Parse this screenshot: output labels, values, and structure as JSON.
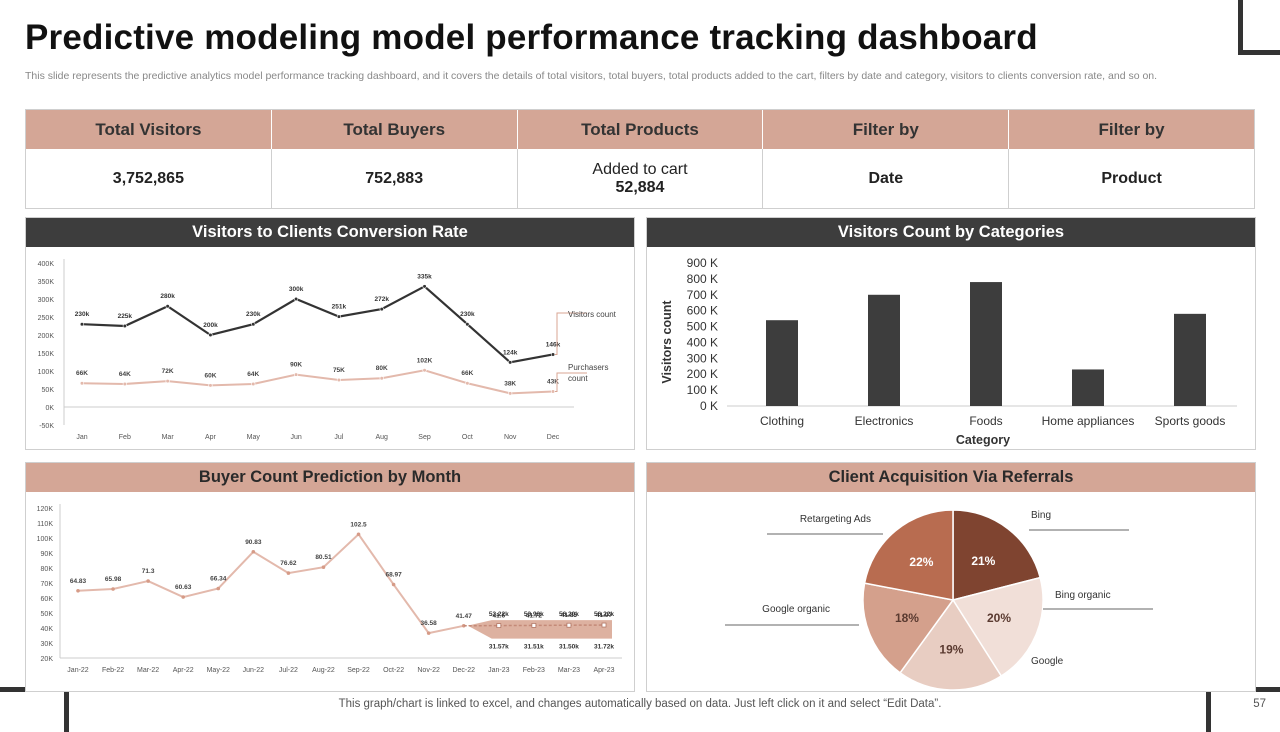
{
  "title": "Predictive modeling model performance tracking dashboard",
  "subtitle": "This slide represents the predictive analytics model performance tracking dashboard, and it covers the details of total visitors, total buyers, total products added to the cart, filters by date and category, visitors to clients conversion rate, and so on.",
  "kpis": {
    "headers": [
      "Total Visitors",
      "Total Buyers",
      "Total Products",
      "Filter by",
      "Filter by"
    ],
    "values": {
      "total_visitors": "3,752,865",
      "total_buyers": "752,883",
      "products_label": "Added to cart",
      "products_value": "52,884",
      "filter_date": "Date",
      "filter_product": "Product"
    }
  },
  "panels": {
    "conversion": "Visitors to Clients Conversion Rate",
    "categories": "Visitors Count by Categories",
    "buyer": "Buyer Count Prediction by Month",
    "referrals": "Client Acquisition Via Referrals"
  },
  "footer": "This graph/chart is linked to excel,  and changes automatically based on data. Just left click on it and select “Edit Data”.",
  "page_number": "57",
  "colors": {
    "tan": "#d4a696",
    "dark": "#3d3d3d",
    "line_dark": "#333333",
    "line_light": "#e3b9ac"
  },
  "chart_data": [
    {
      "id": "conversion",
      "type": "line",
      "title": "Visitors to Clients Conversion Rate",
      "categories": [
        "Jan",
        "Feb",
        "Mar",
        "Apr",
        "May",
        "Jun",
        "Jul",
        "Aug",
        "Sep",
        "Oct",
        "Nov",
        "Dec"
      ],
      "y_ticks": [
        "400K",
        "350K",
        "300K",
        "250K",
        "200K",
        "150K",
        "100K",
        "50K",
        "0K",
        "-50K"
      ],
      "ylim": [
        -50,
        400
      ],
      "series": [
        {
          "name": "Visitors count",
          "values": [
            230,
            225,
            280,
            200,
            230,
            300,
            251,
            272,
            335,
            230,
            124,
            146
          ],
          "labels": [
            "230k",
            "225k",
            "280k",
            "200k",
            "230k",
            "300k",
            "251k",
            "272k",
            "335k",
            "230k",
            "124k",
            "146k"
          ]
        },
        {
          "name": "Purchasers count",
          "values": [
            66,
            64,
            72,
            60,
            64,
            90,
            75,
            80,
            102,
            66,
            38,
            43
          ],
          "labels": [
            "66K",
            "64K",
            "72K",
            "60K",
            "64K",
            "90K",
            "75K",
            "80K",
            "102K",
            "66K",
            "38K",
            "43K"
          ]
        }
      ]
    },
    {
      "id": "categories",
      "type": "bar",
      "title": "Visitors Count by Categories",
      "categories": [
        "Clothing",
        "Electronics",
        "Foods",
        "Home appliances",
        "Sports goods"
      ],
      "values": [
        540,
        700,
        780,
        230,
        580
      ],
      "y_ticks": [
        "900 K",
        "800 K",
        "700 K",
        "600 K",
        "500 K",
        "400 K",
        "300 K",
        "200 K",
        "100 K",
        "0 K"
      ],
      "ylim": [
        0,
        900
      ],
      "xlabel": "Category",
      "ylabel": "Visitors count"
    },
    {
      "id": "buyer",
      "type": "line",
      "title": "Buyer Count Prediction by Month",
      "categories": [
        "Jan-22",
        "Feb-22",
        "Mar-22",
        "Apr-22",
        "May-22",
        "Jun-22",
        "Jul-22",
        "Aug-22",
        "Sep-22",
        "Oct-22",
        "Nov-22",
        "Dec-22",
        "Jan-23",
        "Feb-23",
        "Mar-23",
        "Apr-23"
      ],
      "y_ticks": [
        "120K",
        "110K",
        "100K",
        "90K",
        "80K",
        "70K",
        "60K",
        "50K",
        "40K",
        "30K",
        "20K"
      ],
      "ylim": [
        20,
        120
      ],
      "actual": {
        "values": [
          64.83,
          65.98,
          71.3,
          60.63,
          66.34,
          90.83,
          76.62,
          80.51,
          102.5,
          68.97,
          36.58,
          41.47
        ],
        "labels": [
          "64.83",
          "65.98",
          "71.3",
          "60.63",
          "66.34",
          "90.83",
          "76.62",
          "80.51",
          "102.5",
          "68.97",
          "36.58",
          "41.47"
        ]
      },
      "forecast": {
        "values": [
          41.6,
          41.72,
          41.85,
          41.97
        ],
        "labels": [
          "41.6",
          "41.72",
          "41.85",
          "41.97"
        ]
      },
      "upper": {
        "values": [
          53.22,
          53.93,
          56.2,
          56.22
        ],
        "labels": [
          "53.22k",
          "53.93k",
          "56.20k",
          "56.22k"
        ]
      },
      "lower": {
        "values": [
          31.57,
          31.51,
          31.5,
          31.72
        ],
        "labels": [
          "31.57k",
          "31.51k",
          "31.50k",
          "31.72k"
        ]
      }
    },
    {
      "id": "referrals",
      "type": "pie",
      "title": "Client Acquisition Via Referrals",
      "slices": [
        {
          "name": "Bing",
          "value": 21,
          "label": "21%",
          "color": "#7f4430"
        },
        {
          "name": "Bing organic",
          "value": 20,
          "label": "20%",
          "color": "#f1dfd8"
        },
        {
          "name": "Google",
          "value": 19,
          "label": "19%",
          "color": "#e8cdc2"
        },
        {
          "name": "Google organic",
          "value": 18,
          "label": "18%",
          "color": "#d4a08c"
        },
        {
          "name": "Retargeting Ads",
          "value": 22,
          "label": "22%",
          "color": "#b86c50"
        }
      ]
    }
  ]
}
